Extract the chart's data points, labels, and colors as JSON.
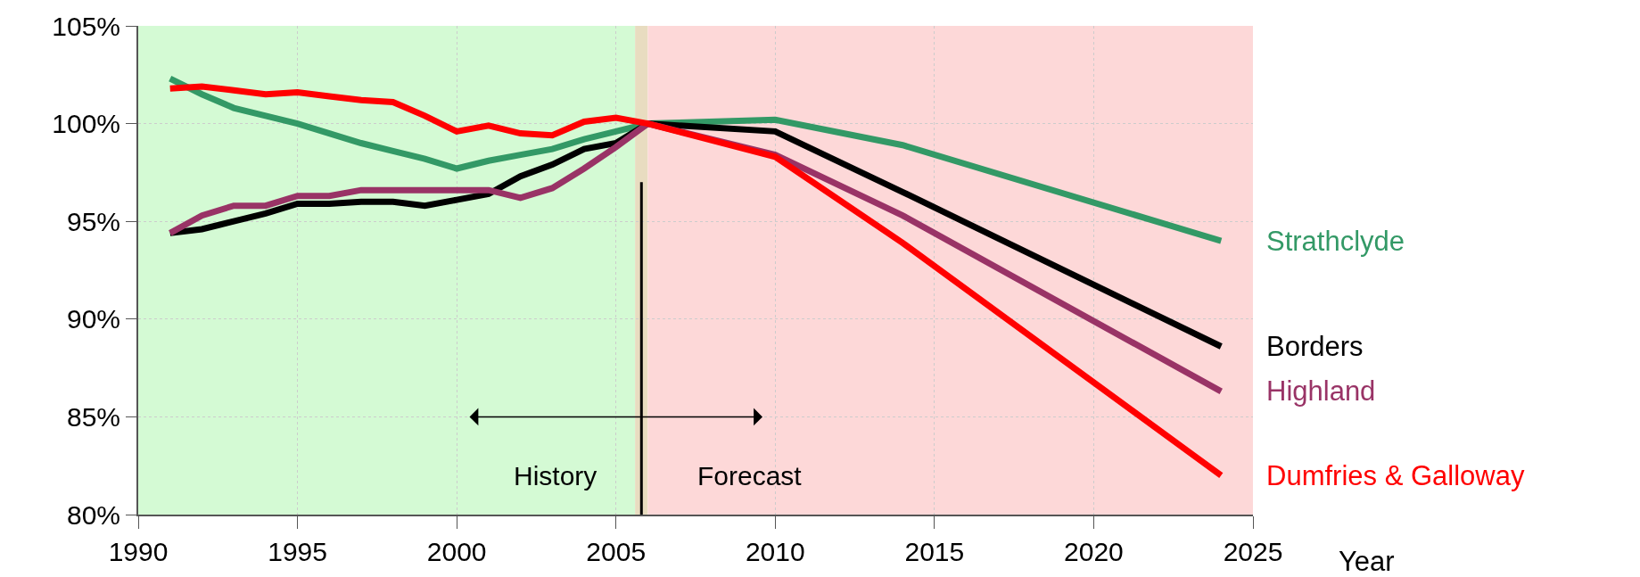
{
  "chart_data": {
    "type": "line",
    "xlabel": "Year",
    "x": [
      1991,
      1992,
      1993,
      1994,
      1995,
      1996,
      1997,
      1998,
      1999,
      2000,
      2001,
      2002,
      2003,
      2004,
      2005,
      2006,
      2010,
      2014,
      2024
    ],
    "series": [
      {
        "name": "Strathclyde",
        "color": "#339966",
        "values": [
          102.3,
          101.5,
          100.8,
          100.4,
          100,
          99.5,
          99.0,
          98.6,
          98.2,
          97.7,
          98.1,
          98.4,
          98.7,
          99.2,
          99.6,
          100,
          100.2,
          98.9,
          94.0
        ]
      },
      {
        "name": "Borders",
        "color": "#000000",
        "values": [
          94.4,
          94.6,
          95.0,
          95.4,
          95.9,
          95.9,
          96.0,
          96.0,
          95.8,
          96.1,
          96.4,
          97.3,
          97.9,
          98.7,
          99.0,
          100,
          99.6,
          96.5,
          88.6
        ]
      },
      {
        "name": "Highland",
        "color": "#993366",
        "values": [
          94.4,
          95.3,
          95.8,
          95.8,
          96.3,
          96.3,
          96.6,
          96.6,
          96.6,
          96.6,
          96.6,
          96.2,
          96.7,
          97.7,
          98.8,
          100,
          98.4,
          95.3,
          86.3
        ]
      },
      {
        "name": "Dumfries & Galloway",
        "color": "#ff0000",
        "values": [
          101.8,
          101.9,
          101.7,
          101.5,
          101.6,
          101.4,
          101.2,
          101.1,
          100.4,
          99.6,
          99.9,
          99.5,
          99.4,
          100.1,
          100.3,
          100,
          98.3,
          93.9,
          82.0
        ]
      }
    ],
    "xlim": [
      1990,
      2025
    ],
    "xticks": [
      1990,
      1995,
      2000,
      2005,
      2010,
      2015,
      2020,
      2025
    ],
    "ylim": [
      80,
      105
    ],
    "yticks": [
      {
        "value": 80,
        "label": "80%"
      },
      {
        "value": 85,
        "label": "85%"
      },
      {
        "value": 90,
        "label": "90%"
      },
      {
        "value": 95,
        "label": "95%"
      },
      {
        "value": 100,
        "label": "100%"
      },
      {
        "value": 105,
        "label": "105%"
      }
    ],
    "bands": [
      {
        "axis": "x",
        "from": 1990,
        "to": 2005.6,
        "label": "History",
        "color": "#d4fad4"
      },
      {
        "axis": "x",
        "from": 2005.6,
        "to": 2006,
        "color": "#e8dcc0"
      },
      {
        "axis": "x",
        "from": 2006,
        "to": 2025,
        "label": "Forecast",
        "color": "#fdd8d8"
      }
    ],
    "ref_lines": [
      {
        "axis": "x",
        "value": 2005.8,
        "color": "#000000"
      }
    ],
    "grid": true,
    "legend": false,
    "marker": "none",
    "line_style": "solid"
  }
}
